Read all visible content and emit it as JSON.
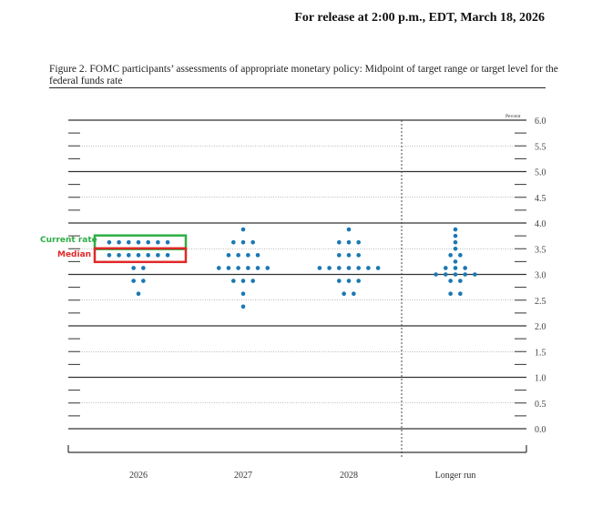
{
  "header": {
    "release": "For release at 2:00 p.m., EDT, March 18, 2026"
  },
  "figure": {
    "title": "Figure 2. FOMC participants’ assessments of appropriate monetary policy: Midpoint of target range or target level for the federal funds rate"
  },
  "annotations": {
    "current_rate": {
      "label": "Current rate",
      "color": "#2eae45",
      "value": 3.625
    },
    "median": {
      "label": "Median",
      "color": "#e02828",
      "value": 3.375
    }
  },
  "chart_data": {
    "type": "scatter",
    "subtype": "dot-plot",
    "ylabel": "Percent",
    "ylim": [
      0,
      6
    ],
    "yticks": [
      "6.0",
      "5.5",
      "5.0",
      "4.5",
      "4.0",
      "3.5",
      "3.0",
      "2.5",
      "2.0",
      "1.5",
      "1.0",
      "0.5",
      "0.0"
    ],
    "categories": [
      "2026",
      "2027",
      "2028",
      "Longer run"
    ],
    "dot_color": "#1a78b4",
    "series": [
      {
        "category": "2026",
        "dots": [
          {
            "y": 3.625,
            "count": 7
          },
          {
            "y": 3.375,
            "count": 7
          },
          {
            "y": 3.125,
            "count": 2
          },
          {
            "y": 2.875,
            "count": 2
          },
          {
            "y": 2.625,
            "count": 1
          }
        ]
      },
      {
        "category": "2027",
        "dots": [
          {
            "y": 3.875,
            "count": 1
          },
          {
            "y": 3.625,
            "count": 3
          },
          {
            "y": 3.375,
            "count": 4
          },
          {
            "y": 3.125,
            "count": 6
          },
          {
            "y": 2.875,
            "count": 3
          },
          {
            "y": 2.625,
            "count": 1
          },
          {
            "y": 2.375,
            "count": 1
          }
        ]
      },
      {
        "category": "2028",
        "dots": [
          {
            "y": 3.875,
            "count": 1
          },
          {
            "y": 3.625,
            "count": 3
          },
          {
            "y": 3.375,
            "count": 3
          },
          {
            "y": 3.125,
            "count": 7
          },
          {
            "y": 2.875,
            "count": 3
          },
          {
            "y": 2.625,
            "count": 2
          }
        ]
      },
      {
        "category": "Longer run",
        "dots": [
          {
            "y": 3.875,
            "count": 1
          },
          {
            "y": 3.75,
            "count": 1
          },
          {
            "y": 3.625,
            "count": 1
          },
          {
            "y": 3.5,
            "count": 1
          },
          {
            "y": 3.375,
            "count": 2
          },
          {
            "y": 3.25,
            "count": 1
          },
          {
            "y": 3.125,
            "count": 3
          },
          {
            "y": 3.0,
            "count": 5
          },
          {
            "y": 2.875,
            "count": 2
          },
          {
            "y": 2.625,
            "count": 2
          }
        ]
      }
    ]
  }
}
